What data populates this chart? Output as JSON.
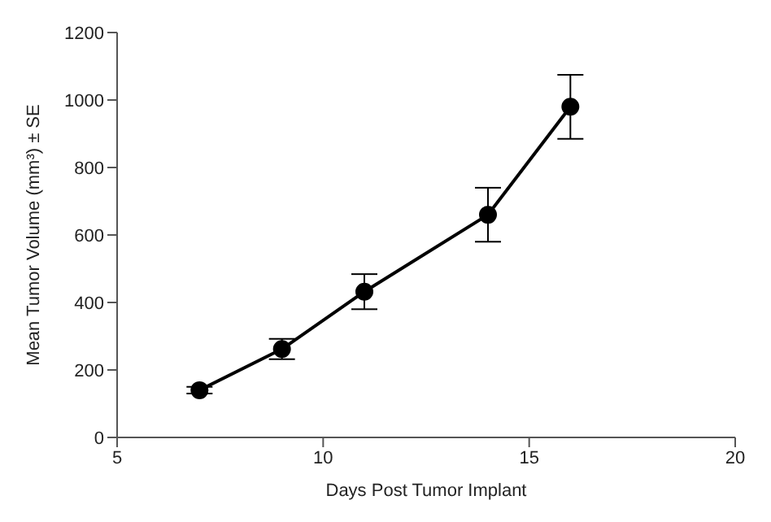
{
  "chart_data": {
    "type": "line",
    "xlabel": "Days Post Tumor Implant",
    "ylabel": "Mean Tumor Volume (mm³) ± SE",
    "x": [
      7,
      9,
      11,
      14,
      16
    ],
    "series": [
      {
        "color": "#000000",
        "values": [
          140,
          262,
          432,
          660,
          980
        ],
        "errors": [
          10,
          30,
          52,
          80,
          95
        ]
      }
    ],
    "xlim": [
      5,
      20
    ],
    "xticks": [
      5,
      10,
      15,
      20
    ],
    "ylim": [
      0,
      1200
    ],
    "yticks": [
      0,
      200,
      400,
      600,
      800,
      1000,
      1200
    ],
    "grid": false,
    "legend": false,
    "marker": "circle",
    "line_style": "solid"
  }
}
